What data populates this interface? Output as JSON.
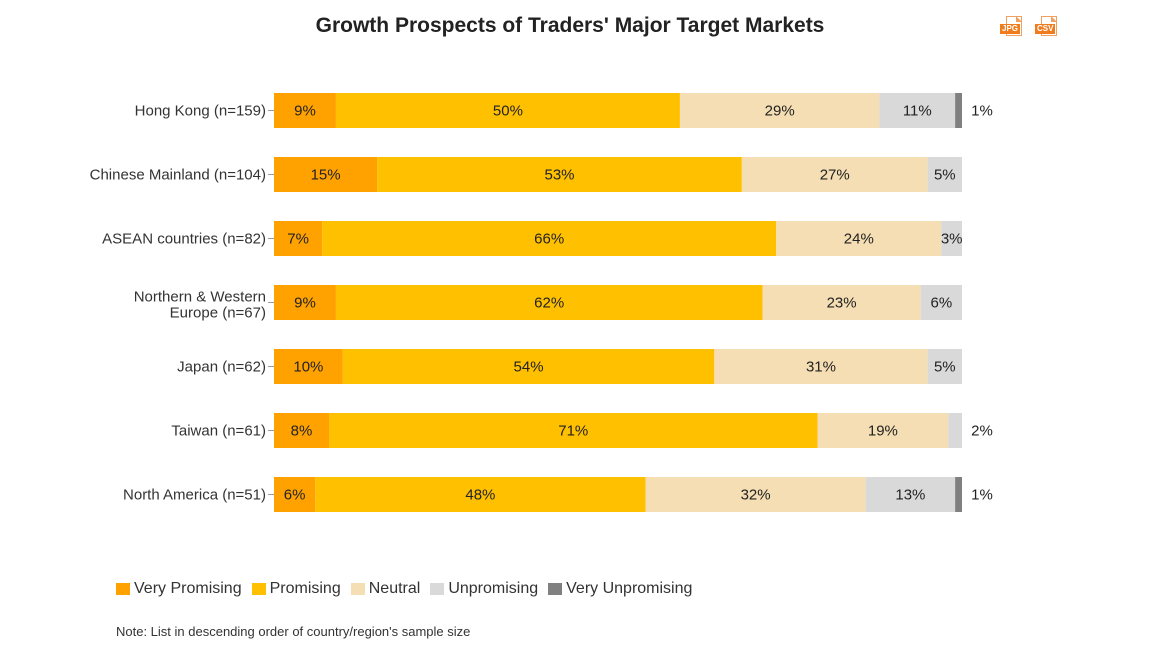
{
  "toolbar": {
    "jpg_label": "JPG",
    "csv_label": "CSV"
  },
  "note": "Note: List in descending order of country/region's sample size",
  "chart_data": {
    "type": "bar",
    "orientation": "horizontal",
    "stacked": true,
    "normalized_100": true,
    "title": "Growth Prospects of Traders' Major Target Markets",
    "xlabel": "",
    "ylabel": "",
    "categories": [
      "Hong Kong (n=159)",
      "Chinese Mainland (n=104)",
      "ASEAN countries (n=82)",
      "Northern & Western Europe (n=67)",
      "Japan (n=62)",
      "Taiwan (n=61)",
      "North America (n=51)"
    ],
    "series": [
      {
        "name": "Very Promising",
        "color": "#FFA200",
        "values": [
          9,
          15,
          7,
          9,
          10,
          8,
          6
        ]
      },
      {
        "name": "Promising",
        "color": "#FFC000",
        "values": [
          50,
          53,
          66,
          62,
          54,
          71,
          48
        ]
      },
      {
        "name": "Neutral",
        "color": "#F5DEB3",
        "values": [
          29,
          27,
          24,
          23,
          31,
          19,
          32
        ]
      },
      {
        "name": "Unpromising",
        "color": "#D9D9D9",
        "values": [
          11,
          5,
          3,
          6,
          5,
          2,
          13
        ]
      },
      {
        "name": "Very Unpromising",
        "color": "#808080",
        "values": [
          1,
          0,
          0,
          0,
          0,
          0,
          1
        ]
      }
    ],
    "value_suffix": "%",
    "legend_position": "bottom-left",
    "grid": false
  }
}
